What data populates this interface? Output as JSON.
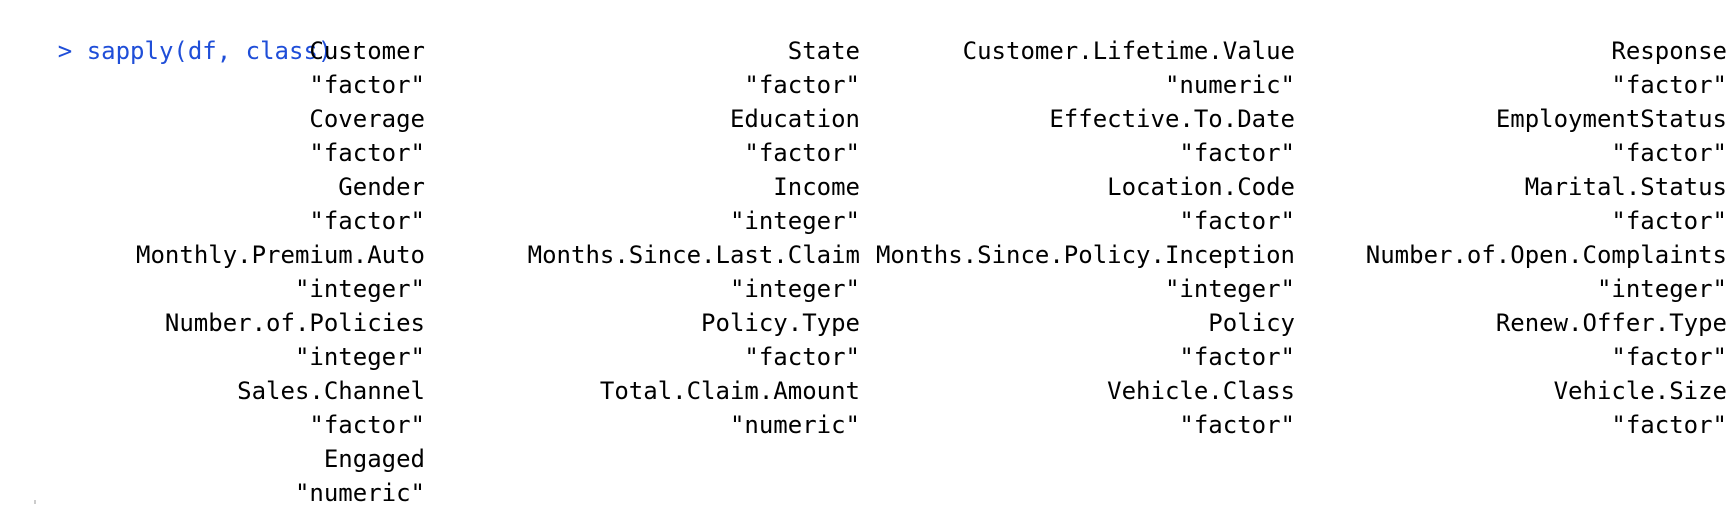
{
  "console": {
    "prompt_symbol": ">",
    "command": "sapply(df, class)",
    "command_color": "#1f4ed8",
    "output_color": "#000000",
    "rows": [
      {
        "names": [
          "Customer",
          "State",
          "Customer.Lifetime.Value",
          "Response"
        ],
        "types": [
          "\"factor\"",
          "\"factor\"",
          "\"numeric\"",
          "\"factor\""
        ]
      },
      {
        "names": [
          "Coverage",
          "Education",
          "Effective.To.Date",
          "EmploymentStatus"
        ],
        "types": [
          "\"factor\"",
          "\"factor\"",
          "\"factor\"",
          "\"factor\""
        ]
      },
      {
        "names": [
          "Gender",
          "Income",
          "Location.Code",
          "Marital.Status"
        ],
        "types": [
          "\"factor\"",
          "\"integer\"",
          "\"factor\"",
          "\"factor\""
        ]
      },
      {
        "names": [
          "Monthly.Premium.Auto",
          "Months.Since.Last.Claim",
          "Months.Since.Policy.Inception",
          "Number.of.Open.Complaints"
        ],
        "types": [
          "\"integer\"",
          "\"integer\"",
          "\"integer\"",
          "\"integer\""
        ]
      },
      {
        "names": [
          "Number.of.Policies",
          "Policy.Type",
          "Policy",
          "Renew.Offer.Type"
        ],
        "types": [
          "\"integer\"",
          "\"factor\"",
          "\"factor\"",
          "\"factor\""
        ]
      },
      {
        "names": [
          "Sales.Channel",
          "Total.Claim.Amount",
          "Vehicle.Class",
          "Vehicle.Size"
        ],
        "types": [
          "\"factor\"",
          "\"numeric\"",
          "\"factor\"",
          "\"factor\""
        ]
      },
      {
        "names": [
          "Engaged"
        ],
        "types": [
          "\"numeric\""
        ]
      }
    ]
  }
}
